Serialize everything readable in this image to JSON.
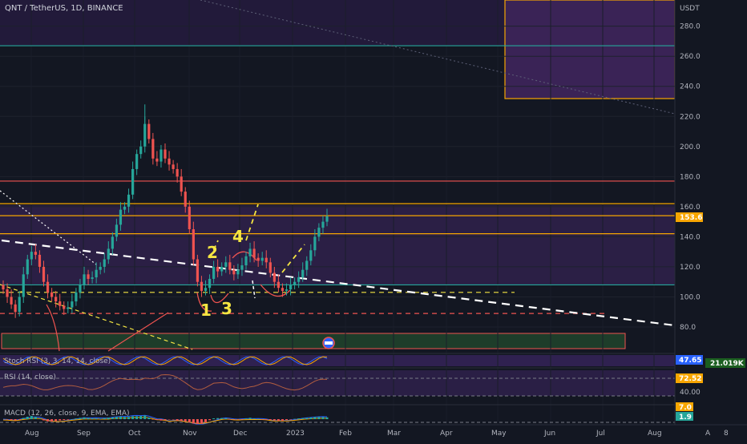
{
  "chart_data": {
    "type": "line",
    "title": "QNT / TetherUS, 1D, BINANCE",
    "currency": "USDT",
    "y_ticks": [
      80,
      100,
      120,
      140,
      160,
      180,
      200,
      220,
      240,
      260,
      280
    ],
    "y_tick_labels": [
      "80.0",
      "100.0",
      "120.0",
      "140.0",
      "160.0",
      "180.0",
      "200.0",
      "220.0",
      "240.0",
      "260.0",
      "280.0"
    ],
    "ylim": [
      72,
      301
    ],
    "x_month_labels": [
      "Aug",
      "Sep",
      "Oct",
      "Nov",
      "Dec",
      "2023",
      "Feb",
      "Mar",
      "Apr",
      "May",
      "Jun",
      "Jul",
      "Aug"
    ],
    "price_series": {
      "name": "QNT / TetherUS",
      "values": [
        105,
        100,
        95,
        90,
        100,
        115,
        125,
        130,
        128,
        120,
        110,
        103,
        100,
        97,
        94,
        92,
        93,
        97,
        103,
        108,
        115,
        112,
        113,
        118,
        120,
        125,
        132,
        140,
        148,
        158,
        160,
        168,
        185,
        195,
        200,
        215,
        205,
        192,
        190,
        198,
        192,
        188,
        185,
        180,
        170,
        160,
        145,
        125,
        110,
        104,
        106,
        112,
        120,
        117,
        120,
        123,
        118,
        115,
        118,
        121,
        127,
        132,
        126,
        124,
        126,
        123,
        116,
        110,
        106,
        104,
        105,
        108,
        110,
        113,
        118,
        124,
        131,
        140,
        146,
        150,
        153.6
      ],
      "last_value": 153.6,
      "last_value_label": "153.6"
    },
    "horizontal_levels": [
      {
        "value": 267,
        "color": "#26a69a",
        "style": "solid"
      },
      {
        "value": 177,
        "color": "#ef5350",
        "style": "solid"
      },
      {
        "value": 162,
        "color": "#f7a600",
        "style": "solid"
      },
      {
        "value": 154,
        "color": "#f7a600",
        "style": "solid"
      },
      {
        "value": 142,
        "color": "#f7a600",
        "style": "solid"
      },
      {
        "value": 108,
        "color": "#26a69a",
        "style": "solid"
      },
      {
        "value": 103,
        "color": "#f5e642",
        "style": "dashed"
      },
      {
        "value": 89,
        "color": "#ef5350",
        "style": "dashed"
      }
    ],
    "annotations": [
      "1",
      "2",
      "3",
      "4"
    ],
    "indicators": [
      {
        "name": "Stoch RSI",
        "label": "Stoch RSI (3, 3, 14, 14, close)",
        "values_label": [
          "47.65"
        ],
        "colors": [
          "#2962ff"
        ]
      },
      {
        "name": "RSI",
        "label": "RSI (14, close)",
        "values_label": [
          "72.52"
        ],
        "colors": [
          "#f7a600"
        ]
      },
      {
        "name": "MACD",
        "label": "MACD (12, 26, close, 9, EMA, EMA)",
        "values_label": [
          "7.0",
          "1.9"
        ],
        "colors": [
          "#f7a600",
          "#26a69a"
        ]
      }
    ],
    "axis_tags": [
      "21.019K",
      "40.00"
    ],
    "scale_buttons": [
      "A",
      "8"
    ],
    "grid": true
  },
  "colors": {
    "background": "#131722",
    "purple_zone": "#3a2356",
    "green_zone": "#1e3d2a",
    "candle_up": "#26a69a",
    "candle_down": "#ef5350",
    "accent": "#f5e642"
  }
}
